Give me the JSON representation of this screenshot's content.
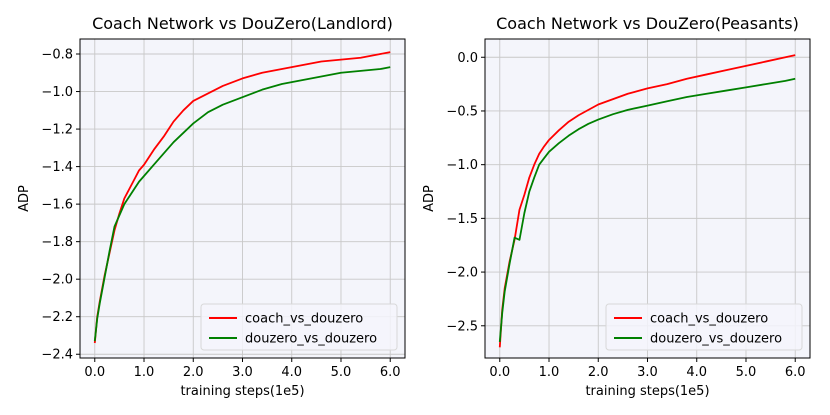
{
  "chart_data": [
    {
      "type": "line",
      "title": "Coach Network vs DouZero(Landlord)",
      "xlabel": "training steps(1e5)",
      "ylabel": "ADP",
      "xlim": [
        -0.3,
        6.3
      ],
      "ylim": [
        -2.42,
        -0.72
      ],
      "xticks": [
        0.0,
        1.0,
        2.0,
        3.0,
        4.0,
        5.0,
        6.0
      ],
      "xtick_labels": [
        "0.0",
        "1.0",
        "2.0",
        "3.0",
        "4.0",
        "5.0",
        "6.0"
      ],
      "yticks": [
        -2.4,
        -2.2,
        -2.0,
        -1.8,
        -1.6,
        -1.4,
        -1.2,
        -1.0,
        -0.8
      ],
      "ytick_labels": [
        "−2.4",
        "−2.2",
        "−2.0",
        "−1.8",
        "−1.6",
        "−1.4",
        "−1.2",
        "−1.0",
        "−0.8"
      ],
      "grid": true,
      "legend": "lower-right",
      "series": [
        {
          "name": "coach_vs_douzero",
          "color": "#ff0000",
          "x": [
            0.0,
            0.05,
            0.1,
            0.2,
            0.3,
            0.4,
            0.5,
            0.6,
            0.7,
            0.8,
            0.9,
            1.0,
            1.2,
            1.4,
            1.6,
            1.8,
            2.0,
            2.3,
            2.6,
            3.0,
            3.4,
            3.8,
            4.2,
            4.6,
            5.0,
            5.4,
            5.8,
            6.0
          ],
          "values": [
            -2.34,
            -2.2,
            -2.12,
            -1.98,
            -1.86,
            -1.74,
            -1.65,
            -1.57,
            -1.52,
            -1.47,
            -1.42,
            -1.39,
            -1.31,
            -1.24,
            -1.16,
            -1.1,
            -1.05,
            -1.01,
            -0.97,
            -0.93,
            -0.9,
            -0.88,
            -0.86,
            -0.84,
            -0.83,
            -0.82,
            -0.8,
            -0.79
          ]
        },
        {
          "name": "douzero_vs_douzero",
          "color": "#008000",
          "x": [
            0.0,
            0.05,
            0.1,
            0.2,
            0.3,
            0.4,
            0.5,
            0.6,
            0.7,
            0.8,
            0.9,
            1.0,
            1.2,
            1.4,
            1.6,
            1.8,
            2.0,
            2.3,
            2.6,
            3.0,
            3.4,
            3.8,
            4.2,
            4.6,
            5.0,
            5.4,
            5.8,
            6.0
          ],
          "values": [
            -2.33,
            -2.21,
            -2.13,
            -1.99,
            -1.85,
            -1.72,
            -1.66,
            -1.6,
            -1.56,
            -1.52,
            -1.48,
            -1.45,
            -1.39,
            -1.33,
            -1.27,
            -1.22,
            -1.17,
            -1.11,
            -1.07,
            -1.03,
            -0.99,
            -0.96,
            -0.94,
            -0.92,
            -0.9,
            -0.89,
            -0.88,
            -0.87
          ]
        }
      ]
    },
    {
      "type": "line",
      "title": "Coach Network vs DouZero(Peasants)",
      "xlabel": "training steps(1e5)",
      "ylabel": "ADP",
      "xlim": [
        -0.3,
        6.3
      ],
      "ylim": [
        -2.8,
        0.17
      ],
      "xticks": [
        0.0,
        1.0,
        2.0,
        3.0,
        4.0,
        5.0,
        6.0
      ],
      "xtick_labels": [
        "0.0",
        "1.0",
        "2.0",
        "3.0",
        "4.0",
        "5.0",
        "6.0"
      ],
      "yticks": [
        -2.5,
        -2.0,
        -1.5,
        -1.0,
        -0.5,
        0.0
      ],
      "ytick_labels": [
        "−2.5",
        "−2.0",
        "−1.5",
        "−1.0",
        "−0.5",
        "0.0"
      ],
      "grid": true,
      "legend": "lower-right",
      "series": [
        {
          "name": "coach_vs_douzero",
          "color": "#ff0000",
          "x": [
            0.0,
            0.05,
            0.1,
            0.2,
            0.3,
            0.4,
            0.5,
            0.6,
            0.7,
            0.8,
            0.9,
            1.0,
            1.2,
            1.4,
            1.6,
            1.8,
            2.0,
            2.3,
            2.6,
            3.0,
            3.4,
            3.8,
            4.2,
            4.6,
            5.0,
            5.4,
            5.8,
            6.0
          ],
          "values": [
            -2.7,
            -2.35,
            -2.15,
            -1.9,
            -1.7,
            -1.42,
            -1.28,
            -1.12,
            -1.0,
            -0.9,
            -0.83,
            -0.77,
            -0.68,
            -0.6,
            -0.54,
            -0.49,
            -0.44,
            -0.39,
            -0.34,
            -0.29,
            -0.25,
            -0.2,
            -0.16,
            -0.12,
            -0.08,
            -0.04,
            0.0,
            0.02
          ]
        },
        {
          "name": "douzero_vs_douzero",
          "color": "#008000",
          "x": [
            0.0,
            0.05,
            0.1,
            0.2,
            0.3,
            0.4,
            0.5,
            0.6,
            0.7,
            0.8,
            0.9,
            1.0,
            1.2,
            1.4,
            1.6,
            1.8,
            2.0,
            2.3,
            2.6,
            3.0,
            3.4,
            3.8,
            4.2,
            4.6,
            5.0,
            5.4,
            5.8,
            6.0
          ],
          "values": [
            -2.65,
            -2.38,
            -2.18,
            -1.92,
            -1.68,
            -1.7,
            -1.45,
            -1.25,
            -1.12,
            -1.0,
            -0.94,
            -0.88,
            -0.8,
            -0.73,
            -0.67,
            -0.62,
            -0.58,
            -0.53,
            -0.49,
            -0.45,
            -0.41,
            -0.37,
            -0.34,
            -0.31,
            -0.28,
            -0.25,
            -0.22,
            -0.2
          ]
        }
      ]
    }
  ]
}
